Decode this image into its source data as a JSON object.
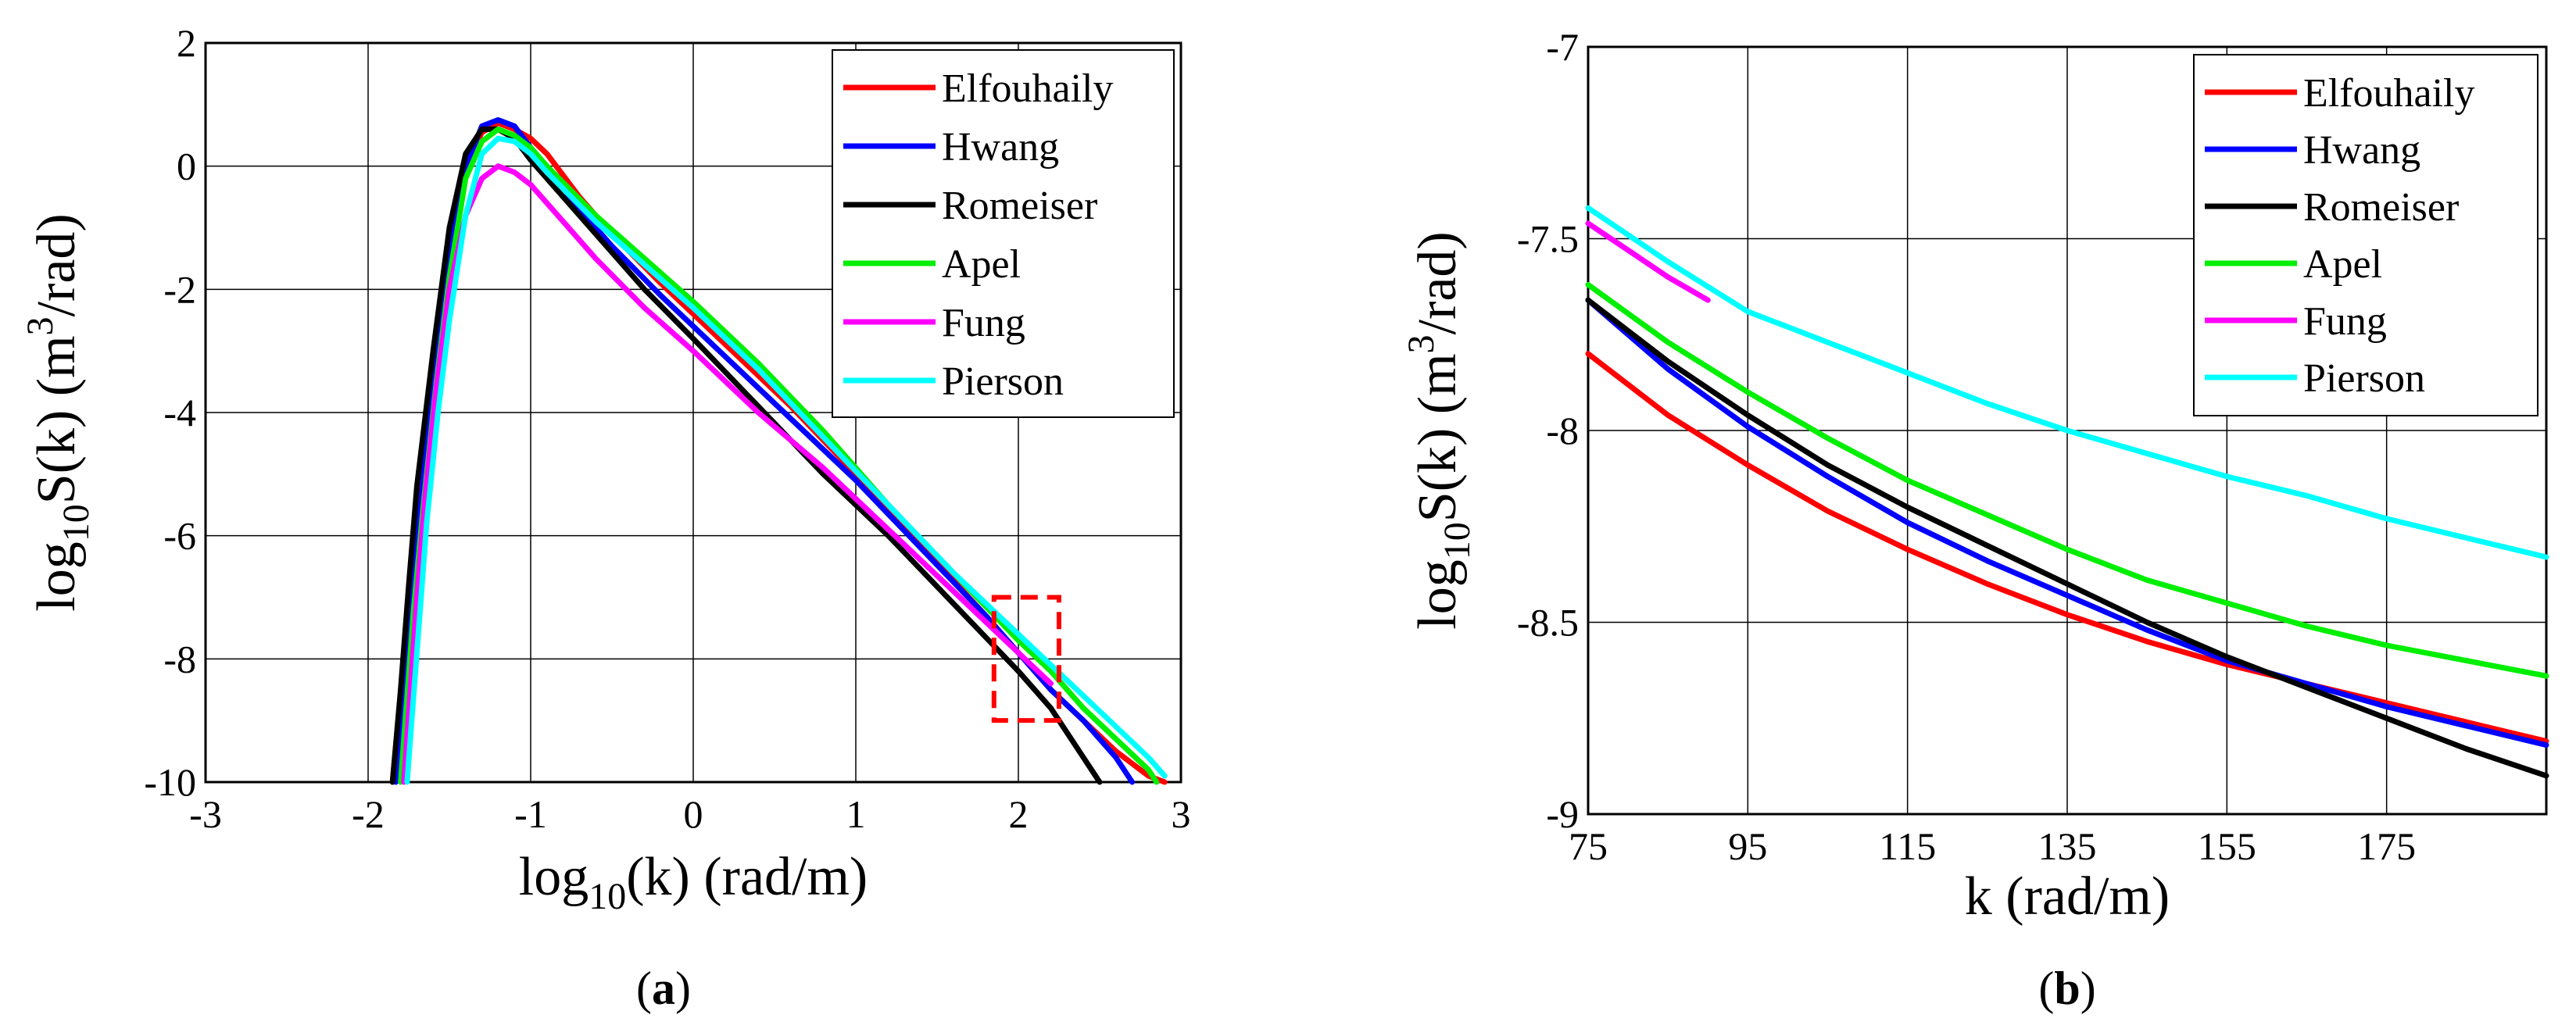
{
  "chart_data": [
    {
      "type": "line",
      "panel_label": "a",
      "xlabel": "log",
      "xlabel_sub": "10",
      "xlabel_rest": "(k) (rad/m)",
      "ylabel_pre": "log",
      "ylabel_sub": "10",
      "ylabel_mid": "S(k) (m",
      "ylabel_sup": "3",
      "ylabel_post": "/rad)",
      "xlim": [
        -3,
        3
      ],
      "ylim": [
        -10,
        2
      ],
      "xticks": [
        -3,
        -2,
        -1,
        0,
        1,
        2,
        3
      ],
      "yticks": [
        -10,
        -8,
        -6,
        -4,
        -2,
        0,
        2
      ],
      "grid": true,
      "legend": "top-right",
      "highlight_box": {
        "x": [
          1.85,
          2.25
        ],
        "y": [
          -9,
          -7
        ],
        "color": "#ff0000",
        "style": "dashed"
      },
      "series": [
        {
          "name": "Elfouhaily",
          "color": "#ff0000",
          "x": [
            -1.85,
            -1.8,
            -1.75,
            -1.7,
            -1.6,
            -1.5,
            -1.4,
            -1.3,
            -1.2,
            -1.1,
            -1.0,
            -0.9,
            -0.7,
            -0.5,
            -0.2,
            0.2,
            0.6,
            1.0,
            1.4,
            1.8,
            2.0,
            2.2,
            2.4,
            2.6,
            2.8,
            2.9
          ],
          "y": [
            -10,
            -8.6,
            -7.0,
            -5.6,
            -3.3,
            -1.4,
            0.0,
            0.55,
            0.7,
            0.6,
            0.45,
            0.2,
            -0.5,
            -1.1,
            -1.9,
            -2.9,
            -3.9,
            -5.0,
            -6.15,
            -7.3,
            -7.9,
            -8.5,
            -9.0,
            -9.5,
            -9.9,
            -10
          ]
        },
        {
          "name": "Hwang",
          "color": "#0000ff",
          "x": [
            -1.83,
            -1.78,
            -1.73,
            -1.68,
            -1.6,
            -1.5,
            -1.4,
            -1.3,
            -1.2,
            -1.1,
            -1.0,
            -0.9,
            -0.7,
            -0.5,
            -0.2,
            0.2,
            0.6,
            1.0,
            1.4,
            1.8,
            2.0,
            2.2,
            2.4,
            2.6,
            2.7
          ],
          "y": [
            -10,
            -8.6,
            -7.0,
            -5.6,
            -3.5,
            -1.5,
            0.0,
            0.65,
            0.75,
            0.65,
            0.3,
            0.0,
            -0.7,
            -1.3,
            -2.1,
            -3.1,
            -4.1,
            -5.1,
            -6.2,
            -7.3,
            -7.9,
            -8.5,
            -9.0,
            -9.6,
            -10
          ]
        },
        {
          "name": "Romeiser",
          "color": "#000000",
          "x": [
            -1.85,
            -1.8,
            -1.75,
            -1.7,
            -1.6,
            -1.5,
            -1.4,
            -1.3,
            -1.2,
            -1.1,
            -1.0,
            -0.8,
            -0.6,
            -0.3,
            0.0,
            0.4,
            0.8,
            1.2,
            1.6,
            2.0,
            2.2,
            2.3,
            2.4,
            2.5
          ],
          "y": [
            -10,
            -8.5,
            -6.8,
            -5.2,
            -3.0,
            -1.0,
            0.2,
            0.6,
            0.6,
            0.45,
            0.1,
            -0.5,
            -1.1,
            -2.0,
            -2.8,
            -3.9,
            -5.0,
            -6.0,
            -7.1,
            -8.2,
            -8.8,
            -9.2,
            -9.6,
            -10
          ]
        },
        {
          "name": "Apel",
          "color": "#00ee00",
          "x": [
            -1.8,
            -1.76,
            -1.72,
            -1.66,
            -1.58,
            -1.5,
            -1.4,
            -1.3,
            -1.2,
            -1.1,
            -1.0,
            -0.9,
            -0.6,
            -0.3,
            0.0,
            0.4,
            0.8,
            1.2,
            1.6,
            2.0,
            2.2,
            2.4,
            2.6,
            2.8,
            2.85
          ],
          "y": [
            -10,
            -8.6,
            -7.2,
            -5.5,
            -3.5,
            -1.8,
            -0.2,
            0.4,
            0.6,
            0.5,
            0.3,
            0.0,
            -0.8,
            -1.5,
            -2.2,
            -3.2,
            -4.3,
            -5.5,
            -6.6,
            -7.7,
            -8.2,
            -8.8,
            -9.3,
            -9.8,
            -10
          ]
        },
        {
          "name": "Fung",
          "color": "#ff00ff",
          "x": [
            -1.78,
            -1.74,
            -1.7,
            -1.65,
            -1.58,
            -1.5,
            -1.4,
            -1.3,
            -1.2,
            -1.1,
            -1.0,
            -0.8,
            -0.6,
            -0.3,
            0.0,
            0.4,
            0.8,
            1.2,
            1.6,
            2.0,
            2.2
          ],
          "y": [
            -10,
            -8.5,
            -7.0,
            -5.4,
            -3.6,
            -2.0,
            -0.8,
            -0.2,
            0.0,
            -0.1,
            -0.3,
            -0.9,
            -1.5,
            -2.3,
            -3.0,
            -4.0,
            -4.9,
            -5.9,
            -6.9,
            -7.9,
            -8.4
          ]
        },
        {
          "name": "Pierson",
          "color": "#00ffff",
          "x": [
            -1.76,
            -1.72,
            -1.68,
            -1.64,
            -1.57,
            -1.5,
            -1.4,
            -1.3,
            -1.2,
            -1.1,
            -1.0,
            -0.9,
            -0.6,
            -0.3,
            0.0,
            0.4,
            0.8,
            1.2,
            1.6,
            2.0,
            2.2,
            2.4,
            2.6,
            2.8,
            2.9
          ],
          "y": [
            -10,
            -8.6,
            -7.2,
            -5.8,
            -4.0,
            -2.5,
            -0.8,
            0.2,
            0.45,
            0.4,
            0.2,
            -0.1,
            -0.9,
            -1.6,
            -2.3,
            -3.3,
            -4.4,
            -5.5,
            -6.6,
            -7.6,
            -8.1,
            -8.6,
            -9.1,
            -9.6,
            -9.9
          ]
        }
      ]
    },
    {
      "type": "line",
      "panel_label": "b",
      "xlabel": "k (rad/m)",
      "ylabel_pre": "log",
      "ylabel_sub": "10",
      "ylabel_mid": "S(k) (m",
      "ylabel_sup": "3",
      "ylabel_post": "/rad)",
      "xlim": [
        75,
        195
      ],
      "ylim": [
        -9,
        -7
      ],
      "xticks": [
        75,
        95,
        115,
        135,
        155,
        175
      ],
      "yticks": [
        -9,
        -8.5,
        -8,
        -7.5,
        -7
      ],
      "grid": true,
      "legend": "top-right",
      "series": [
        {
          "name": "Elfouhaily",
          "color": "#ff0000",
          "x": [
            75,
            85,
            95,
            105,
            115,
            125,
            135,
            145,
            155,
            165,
            175,
            185,
            195
          ],
          "y": [
            -7.8,
            -7.96,
            -8.09,
            -8.21,
            -8.31,
            -8.4,
            -8.48,
            -8.55,
            -8.61,
            -8.66,
            -8.71,
            -8.76,
            -8.81
          ]
        },
        {
          "name": "Hwang",
          "color": "#0000ff",
          "x": [
            75,
            85,
            95,
            105,
            115,
            125,
            135,
            145,
            155,
            165,
            175,
            185,
            195
          ],
          "y": [
            -7.66,
            -7.84,
            -7.99,
            -8.12,
            -8.24,
            -8.34,
            -8.43,
            -8.52,
            -8.6,
            -8.66,
            -8.72,
            -8.77,
            -8.82
          ]
        },
        {
          "name": "Romeiser",
          "color": "#000000",
          "x": [
            75,
            85,
            95,
            105,
            115,
            125,
            135,
            145,
            155,
            165,
            175,
            185,
            195
          ],
          "y": [
            -7.66,
            -7.82,
            -7.96,
            -8.09,
            -8.2,
            -8.3,
            -8.4,
            -8.5,
            -8.59,
            -8.67,
            -8.75,
            -8.83,
            -8.9
          ]
        },
        {
          "name": "Apel",
          "color": "#00ee00",
          "x": [
            75,
            85,
            95,
            105,
            115,
            125,
            135,
            145,
            155,
            165,
            175,
            185,
            195
          ],
          "y": [
            -7.62,
            -7.77,
            -7.9,
            -8.02,
            -8.13,
            -8.22,
            -8.31,
            -8.39,
            -8.45,
            -8.51,
            -8.56,
            -8.6,
            -8.64
          ]
        },
        {
          "name": "Fung",
          "color": "#ff00ff",
          "x": [
            75,
            80,
            85,
            90
          ],
          "y": [
            -7.46,
            -7.53,
            -7.6,
            -7.66
          ]
        },
        {
          "name": "Pierson",
          "color": "#00ffff",
          "x": [
            75,
            85,
            95,
            105,
            115,
            125,
            135,
            145,
            155,
            165,
            175,
            185,
            195
          ],
          "y": [
            -7.42,
            -7.56,
            -7.69,
            -7.77,
            -7.85,
            -7.93,
            -8.0,
            -8.06,
            -8.12,
            -8.17,
            -8.23,
            -8.28,
            -8.33
          ]
        }
      ]
    }
  ]
}
